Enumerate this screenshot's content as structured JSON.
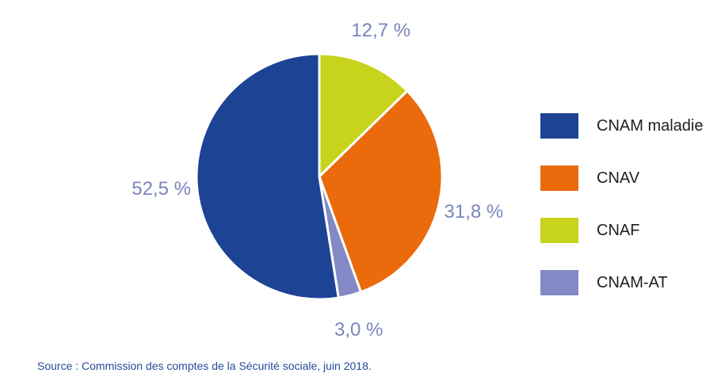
{
  "chart_data": {
    "type": "pie",
    "categories": [
      "CNAM maladie",
      "CNAV",
      "CNAF",
      "CNAM-AT"
    ],
    "values": [
      52.5,
      31.8,
      12.7,
      3.0
    ],
    "value_labels": [
      "52,5 %",
      "31,8 %",
      "12,7 %",
      "3,0 %"
    ],
    "colors": [
      "#1c4394",
      "#ea6a0c",
      "#c8d41c",
      "#8389c4"
    ],
    "legend_position": "right",
    "title": "",
    "source": "Source : Commission des comptes de la Sécurité sociale, juin 2018."
  }
}
